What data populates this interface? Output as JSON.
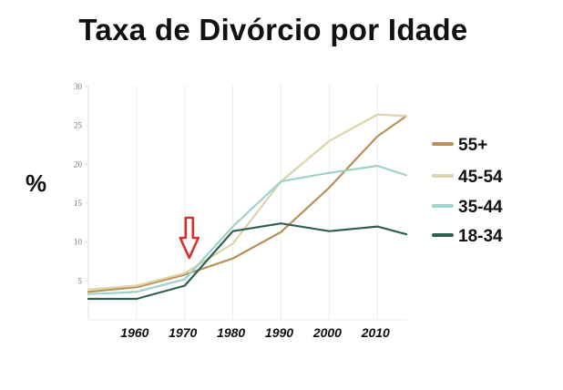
{
  "chart_data": {
    "type": "line",
    "title": "Taxa de Divórcio por Idade",
    "ylabel": "%",
    "xlabel": "",
    "xlim": [
      1950,
      2016
    ],
    "ylim": [
      0,
      30
    ],
    "yticks": [
      5,
      10,
      15,
      20,
      25,
      30
    ],
    "xticks": [
      1960,
      1970,
      1980,
      1990,
      2000,
      2010
    ],
    "grid": "vertical",
    "legend_position": "right",
    "annotation": {
      "type": "arrow",
      "direction": "down",
      "x": 1970,
      "color": "#d9302a"
    },
    "series": [
      {
        "name": "55+",
        "color": "#b8905a",
        "x": [
          1950,
          1960,
          1970,
          1980,
          1990,
          2000,
          2010,
          2016
        ],
        "y": [
          3.6,
          4.2,
          5.8,
          7.9,
          11.3,
          17.0,
          23.6,
          26.2
        ]
      },
      {
        "name": "45-54",
        "color": "#dcd3a8",
        "x": [
          1950,
          1960,
          1970,
          1980,
          1990,
          2000,
          2010,
          2016
        ],
        "y": [
          3.9,
          4.4,
          6.0,
          9.8,
          17.8,
          23.0,
          26.4,
          26.2
        ]
      },
      {
        "name": "35-44",
        "color": "#9dd3ca",
        "x": [
          1950,
          1960,
          1970,
          1980,
          1990,
          2000,
          2010,
          2016
        ],
        "y": [
          3.3,
          3.6,
          5.2,
          12.0,
          17.8,
          18.9,
          19.8,
          18.6
        ]
      },
      {
        "name": "18-34",
        "color": "#2f5e52",
        "x": [
          1950,
          1960,
          1970,
          1980,
          1990,
          2000,
          2010,
          2016
        ],
        "y": [
          2.7,
          2.7,
          4.4,
          11.4,
          12.4,
          11.4,
          12.0,
          11.0
        ]
      }
    ]
  }
}
